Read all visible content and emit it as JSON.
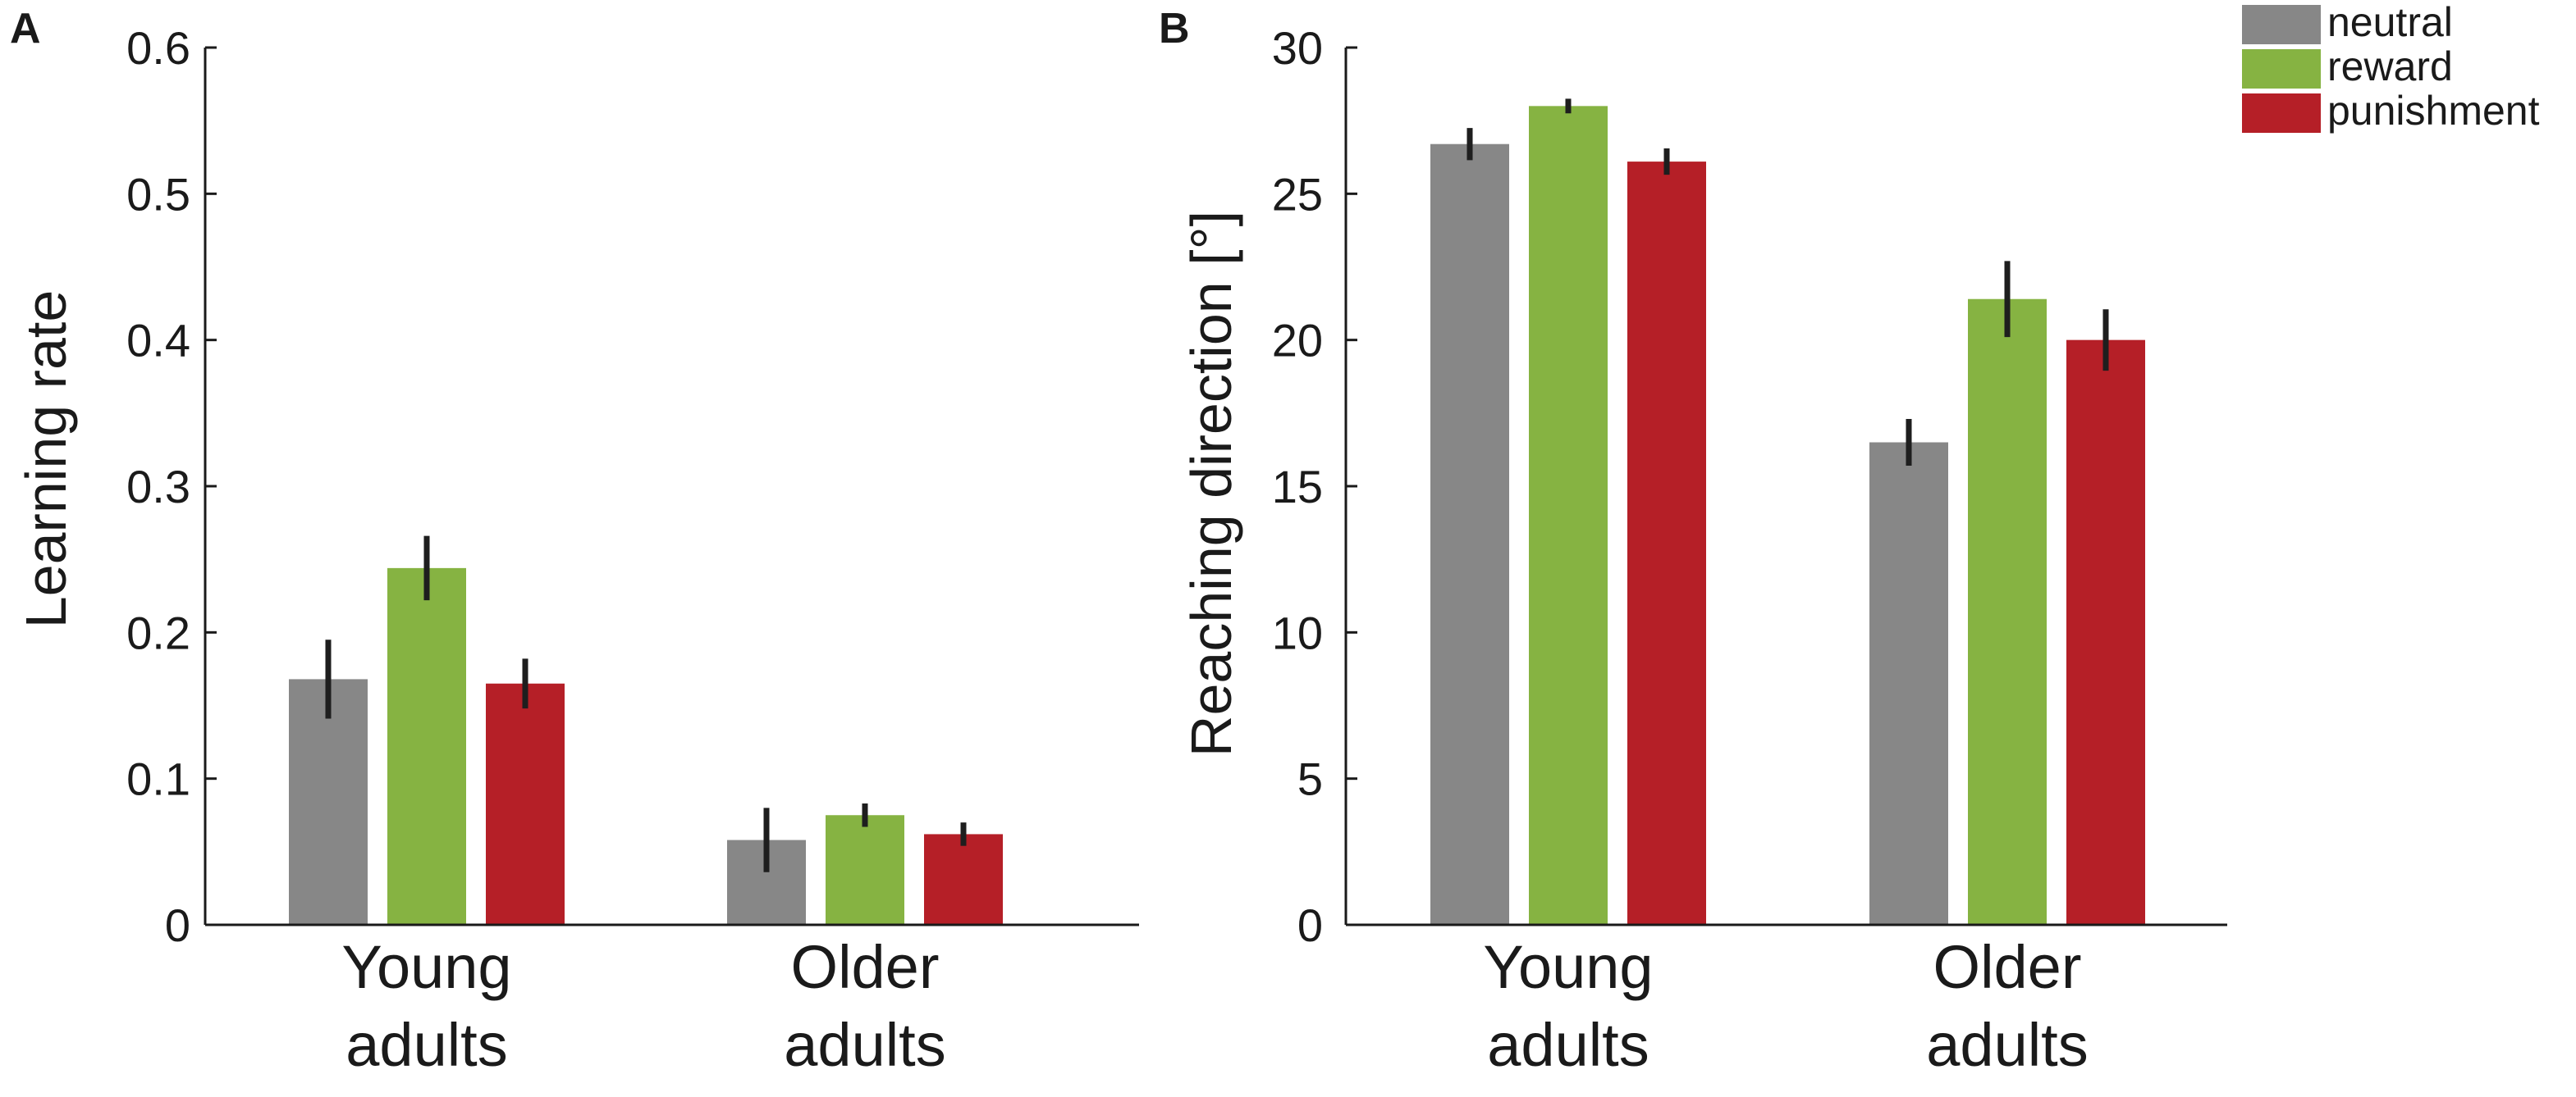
{
  "figure": {
    "panel_a_letter": "A",
    "panel_b_letter": "B"
  },
  "chart_data": [
    {
      "type": "bar",
      "panel": "A",
      "title": "",
      "xlabel": "",
      "ylabel": "Learning rate",
      "ylim": [
        0,
        0.6
      ],
      "yticks": [
        0,
        0.1,
        0.2,
        0.3,
        0.4,
        0.5,
        0.6
      ],
      "ytick_labels": [
        "0",
        "0.1",
        "0.2",
        "0.3",
        "0.4",
        "0.5",
        "0.6"
      ],
      "categories": [
        [
          "Young",
          "adults"
        ],
        [
          "Older",
          "adults"
        ]
      ],
      "series": [
        {
          "name": "neutral",
          "color": "#878787",
          "values": [
            0.168,
            0.058
          ],
          "errors": [
            0.027,
            0.022
          ]
        },
        {
          "name": "reward",
          "color": "#86b342",
          "values": [
            0.244,
            0.075
          ],
          "errors": [
            0.022,
            0.008
          ]
        },
        {
          "name": "punishment",
          "color": "#b51f27",
          "values": [
            0.165,
            0.062
          ],
          "errors": [
            0.017,
            0.008
          ]
        }
      ]
    },
    {
      "type": "bar",
      "panel": "B",
      "title": "",
      "xlabel": "",
      "ylabel": "Reaching direction [°]",
      "ylim": [
        0,
        30
      ],
      "yticks": [
        0,
        5,
        10,
        15,
        20,
        25,
        30
      ],
      "ytick_labels": [
        "0",
        "5",
        "10",
        "15",
        "20",
        "25",
        "30"
      ],
      "categories": [
        [
          "Young",
          "adults"
        ],
        [
          "Older",
          "adults"
        ]
      ],
      "series": [
        {
          "name": "neutral",
          "color": "#878787",
          "values": [
            26.7,
            16.5
          ],
          "errors": [
            0.55,
            0.8
          ]
        },
        {
          "name": "reward",
          "color": "#86b342",
          "values": [
            28.0,
            21.4
          ],
          "errors": [
            0.25,
            1.3
          ]
        },
        {
          "name": "punishment",
          "color": "#b51f27",
          "values": [
            26.1,
            20.0
          ],
          "errors": [
            0.45,
            1.05
          ]
        }
      ],
      "legend": {
        "position": "top-right",
        "entries": [
          {
            "label": "neutral",
            "color": "#878787"
          },
          {
            "label": "reward",
            "color": "#86b342"
          },
          {
            "label": "punishment",
            "color": "#b51f27"
          }
        ]
      }
    }
  ]
}
